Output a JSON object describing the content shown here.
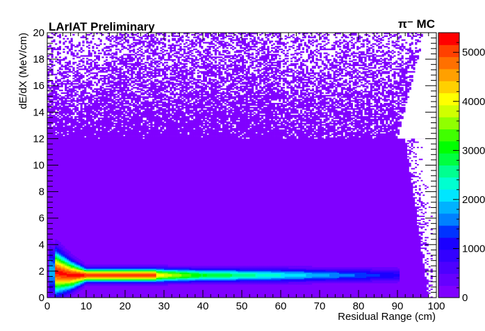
{
  "chart_data": {
    "type": "heatmap",
    "title": "LArIAT Preliminary",
    "tag": "π⁻ MC",
    "xlabel": "Residual Range (cm)",
    "ylabel": "dE/dX (MeV/cm)",
    "xlim": [
      0,
      100
    ],
    "ylim": [
      0,
      20
    ],
    "xticks": [
      0,
      10,
      20,
      30,
      40,
      50,
      60,
      70,
      80,
      90,
      100
    ],
    "xtick_labels": [
      "0",
      "10",
      "20",
      "30",
      "40",
      "50",
      "60",
      "70",
      "80",
      "90",
      "100"
    ],
    "yticks": [
      0,
      2,
      4,
      6,
      8,
      10,
      12,
      14,
      16,
      18,
      20
    ],
    "ytick_labels": [
      "0",
      "2",
      "4",
      "6",
      "8",
      "10",
      "12",
      "14",
      "16",
      "18",
      "20"
    ],
    "bins": {
      "x": 200,
      "y": 200
    },
    "zlim": [
      0,
      5400
    ],
    "zticks": [
      0,
      1000,
      2000,
      3000,
      4000,
      5000
    ],
    "ztick_labels": [
      "0",
      "1000",
      "2000",
      "3000",
      "4000",
      "5000"
    ],
    "palette": [
      "#8000ff",
      "#6600ff",
      "#4d00ff",
      "#3300ff",
      "#1a00ff",
      "#0033ff",
      "#0080ff",
      "#00b2ff",
      "#00e6ff",
      "#00ffd0",
      "#00ff90",
      "#00ff40",
      "#00ff00",
      "#40ff00",
      "#90ff00",
      "#d0ff00",
      "#ffff00",
      "#ffd000",
      "#ffa000",
      "#ff7000",
      "#ff4000",
      "#ff0000"
    ],
    "features": {
      "band": {
        "y_center": 1.7,
        "x_start": 0.5,
        "x_end": 90.5,
        "peak_count": 5200
      },
      "bragg_rise": {
        "x_max": 8,
        "y_max": 4.6
      },
      "scatter_edge": {
        "y_start": 12,
        "x_at_y_start": 90,
        "x_at_y_max": 97
      },
      "low_fill_region": {
        "y_max": 12,
        "x_max": 98
      }
    }
  }
}
